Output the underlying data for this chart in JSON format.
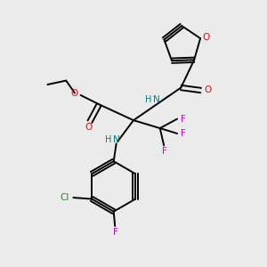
{
  "bg_color": "#ebebeb",
  "bond_color": "#000000",
  "O_color": "#ff0000",
  "N_color": "#0000cc",
  "NH_color": "#008080",
  "F_color": "#cc00cc",
  "Cl_color": "#228b22",
  "lw": 1.4,
  "fs": 7.5,
  "xlim": [
    0,
    10
  ],
  "ylim": [
    0,
    10
  ]
}
